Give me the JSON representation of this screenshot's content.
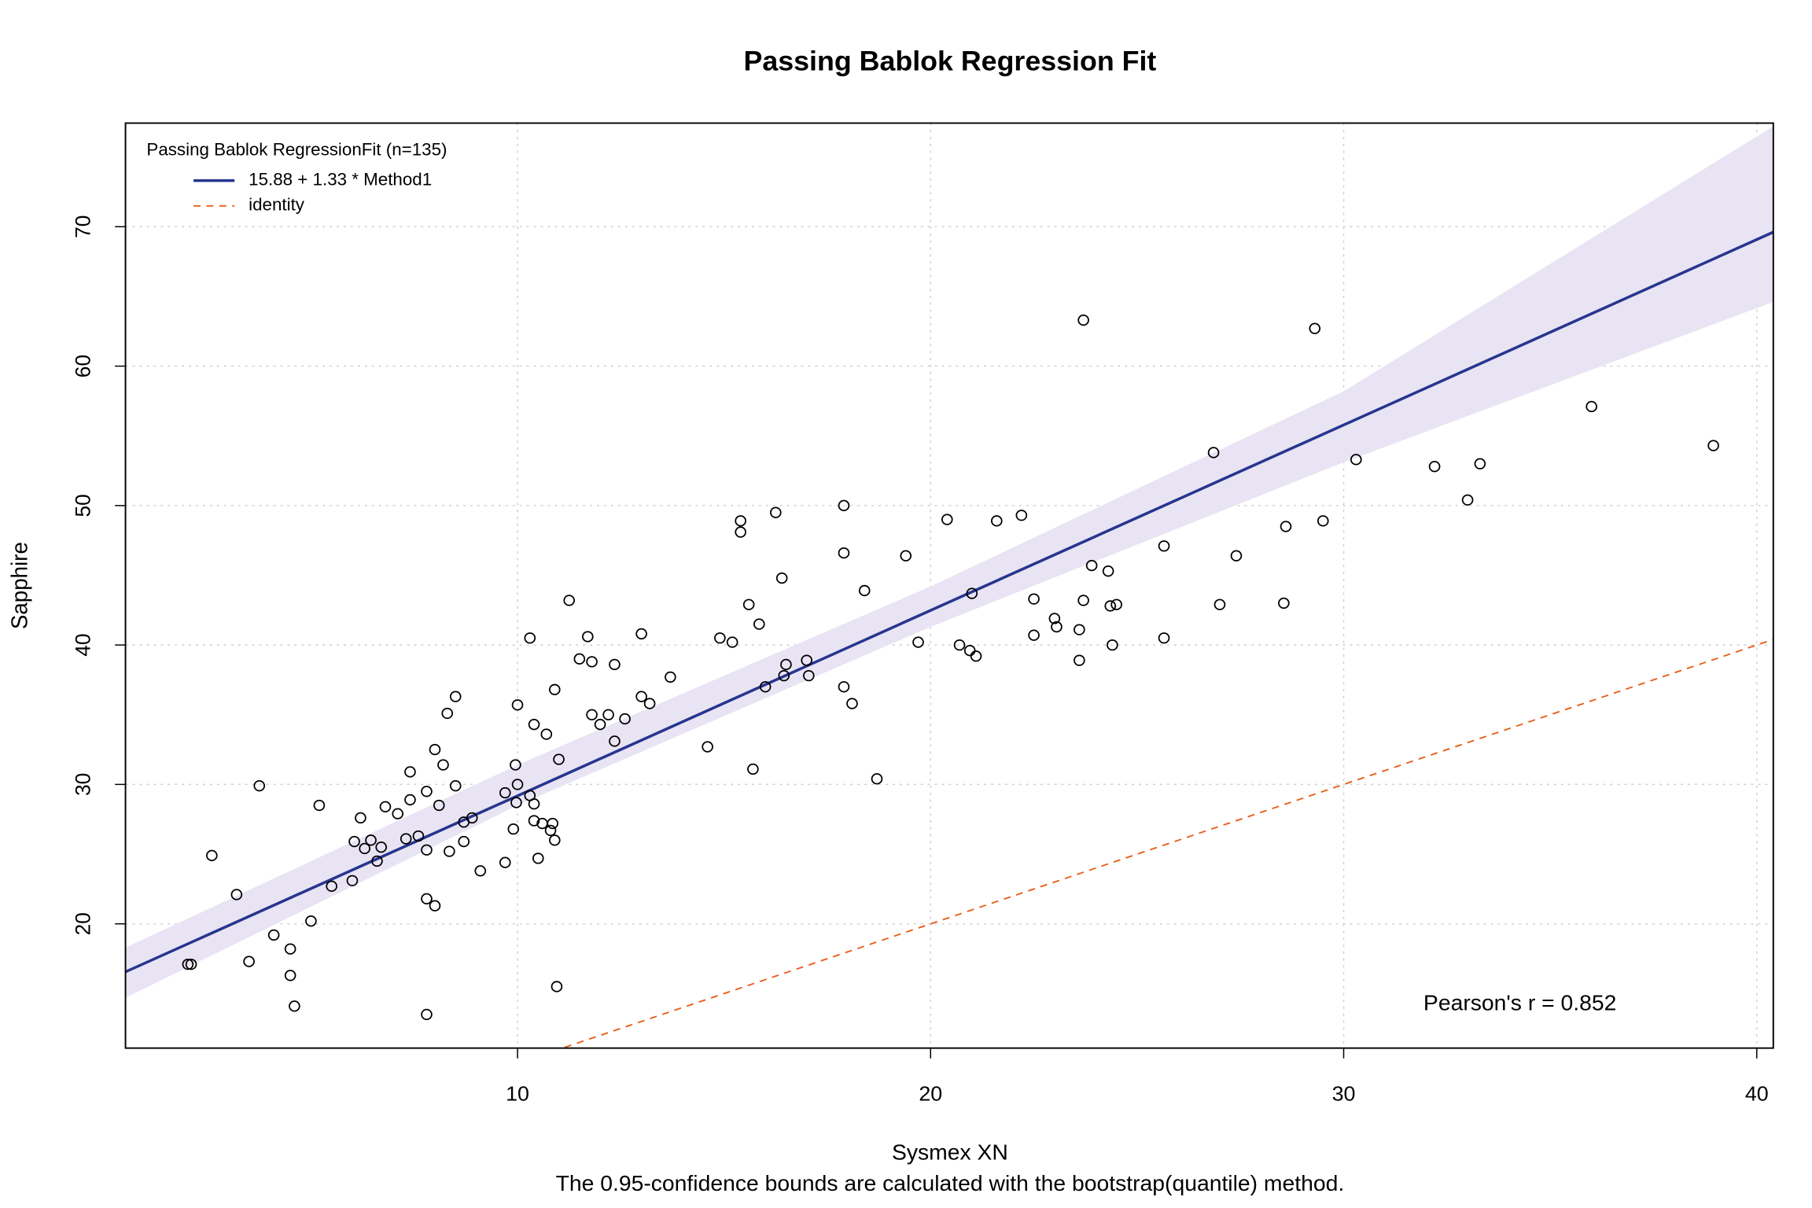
{
  "chart_data": {
    "type": "scatter",
    "title": "Passing Bablok Regression Fit",
    "x_label": "Sysmex XN",
    "y_label": "Sapphire",
    "subtitle": "The 0.95-confidence bounds are calculated with the bootstrap(quantile) method.",
    "legend_title": "Passing Bablok RegressionFit (n=135)",
    "annotation": "Pearson's r = 0.852",
    "xlim": [
      0.51,
      40.4
    ],
    "ylim": [
      11.09,
      77.43
    ],
    "xticks": [
      10,
      20,
      30,
      40
    ],
    "yticks": [
      20,
      30,
      40,
      50,
      60,
      70
    ],
    "grid": true,
    "point_color": "#000000",
    "x": [
      2.02,
      2.1,
      2.6,
      3.2,
      3.5,
      3.75,
      4.1,
      4.5,
      4.5,
      4.6,
      5.0,
      5.2,
      5.5,
      6.0,
      6.05,
      6.2,
      6.3,
      6.45,
      6.6,
      6.7,
      6.8,
      7.1,
      7.3,
      7.4,
      7.4,
      7.6,
      7.8,
      7.8,
      7.8,
      7.8,
      8.0,
      8.0,
      8.1,
      8.2,
      8.3,
      8.35,
      8.5,
      8.5,
      8.7,
      8.7,
      8.9,
      9.1,
      9.7,
      9.7,
      9.9,
      9.95,
      9.97,
      10.0,
      10.0,
      10.3,
      10.3,
      10.4,
      10.4,
      10.4,
      10.5,
      10.6,
      10.7,
      10.8,
      10.85,
      10.9,
      10.9,
      10.95,
      11.0,
      11.25,
      11.5,
      11.7,
      11.8,
      11.8,
      12.0,
      12.2,
      12.35,
      12.35,
      12.6,
      13.0,
      13.0,
      13.2,
      13.7,
      14.6,
      14.9,
      15.2,
      15.4,
      15.4,
      15.6,
      15.7,
      15.85,
      16.0,
      16.25,
      16.4,
      16.45,
      16.5,
      17.0,
      17.05,
      17.9,
      17.9,
      17.9,
      18.1,
      18.4,
      18.7,
      19.4,
      19.7,
      20.4,
      20.7,
      20.95,
      21.0,
      21.1,
      21.6,
      22.2,
      22.5,
      22.5,
      23.0,
      23.05,
      23.6,
      23.6,
      23.7,
      23.7,
      23.9,
      24.3,
      24.35,
      24.5,
      24.4,
      25.65,
      25.65,
      26.85,
      27.0,
      27.4,
      28.55,
      28.6,
      29.3,
      29.5,
      30.3,
      32.2,
      33.0,
      33.3,
      36.0,
      38.95
    ],
    "y": [
      17.1,
      17.1,
      24.9,
      22.1,
      17.3,
      29.9,
      19.2,
      18.2,
      16.3,
      14.1,
      20.2,
      28.5,
      22.7,
      23.1,
      25.9,
      27.6,
      25.4,
      26.0,
      24.5,
      25.5,
      28.4,
      27.9,
      26.1,
      30.9,
      28.9,
      26.3,
      21.8,
      25.3,
      29.5,
      13.5,
      32.5,
      21.3,
      28.5,
      31.4,
      35.1,
      25.2,
      29.9,
      36.3,
      27.3,
      25.9,
      27.6,
      23.8,
      29.4,
      24.4,
      26.8,
      31.4,
      28.7,
      30.0,
      35.7,
      40.5,
      29.2,
      28.6,
      34.3,
      27.4,
      24.7,
      27.2,
      33.6,
      26.7,
      27.2,
      26.0,
      36.8,
      15.5,
      31.8,
      43.2,
      39.0,
      40.6,
      35.0,
      38.8,
      34.3,
      35.0,
      38.6,
      33.1,
      34.7,
      36.3,
      40.8,
      35.8,
      37.7,
      32.7,
      40.5,
      40.2,
      48.9,
      48.1,
      42.9,
      31.1,
      41.5,
      37.0,
      49.5,
      44.8,
      37.8,
      38.6,
      38.9,
      37.8,
      37.0,
      50.0,
      46.6,
      35.8,
      43.9,
      30.4,
      46.4,
      40.2,
      49.0,
      40.0,
      39.6,
      43.7,
      39.2,
      48.9,
      49.3,
      43.3,
      40.7,
      41.9,
      41.3,
      41.1,
      38.9,
      63.3,
      43.2,
      45.7,
      45.3,
      42.8,
      42.9,
      40.0,
      47.1,
      40.5,
      53.8,
      42.9,
      46.4,
      43.0,
      48.5,
      62.7,
      48.9,
      53.3,
      52.8,
      50.4,
      53.0,
      57.1,
      54.3
    ],
    "band": {
      "color": "#e9e4f3",
      "x": [
        0.51,
        10,
        20,
        30,
        40.4
      ],
      "lower": [
        14.7,
        28.5,
        41.3,
        53.1,
        64.6
      ],
      "upper": [
        18.3,
        31.4,
        44.2,
        58.2,
        77.2
      ]
    },
    "lines": [
      {
        "name": "15.88 + 1.33 * Method1",
        "color": "#26358f",
        "intercept": 15.88,
        "slope": 1.33,
        "dashed": false
      },
      {
        "name": "identity",
        "color": "#e8601c",
        "intercept": 0,
        "slope": 1,
        "dashed": true
      }
    ]
  }
}
